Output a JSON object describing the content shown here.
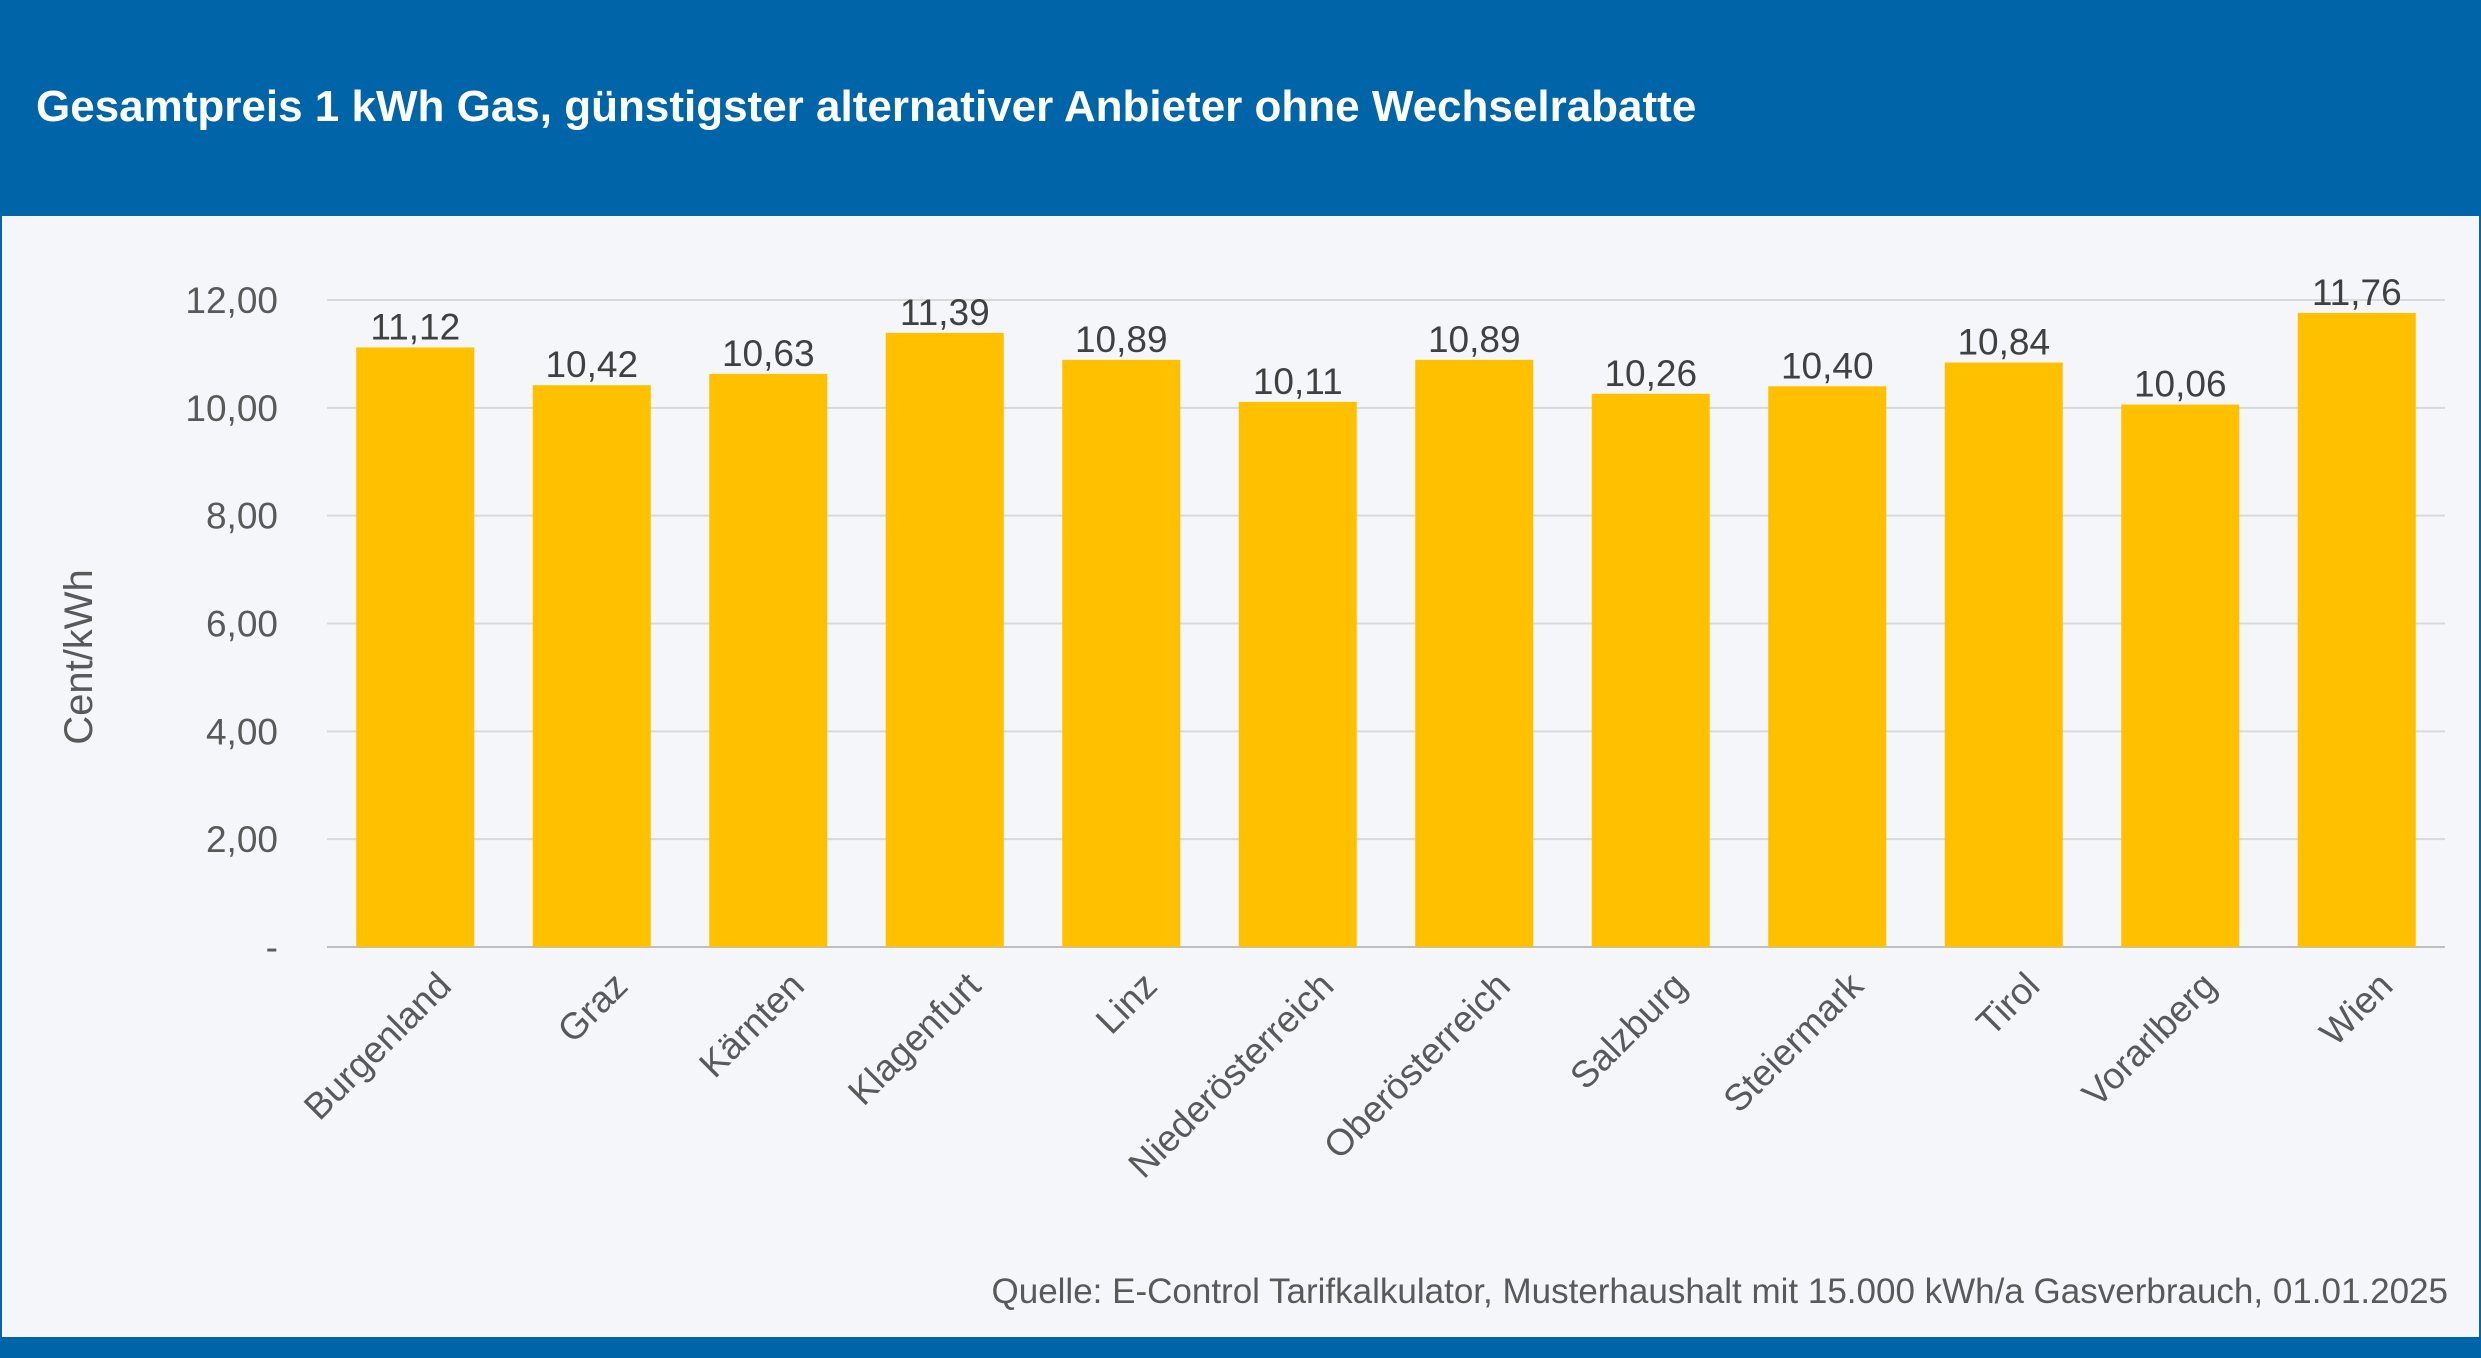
{
  "header": {
    "title": "Gesamtpreis 1 kWh Gas, günstigster alternativer Anbieter ohne Wechselrabatte"
  },
  "footer": {
    "source": "Quelle: E-Control Tarifkalkulator, Musterhaushalt mit 15.000 kWh/a Gasverbrauch, 01.01.2025"
  },
  "colors": {
    "header_blue": "#0064a8",
    "bar": "#ffc000",
    "background": "#f4f6fa",
    "gridline": "#d9d9d9"
  },
  "chart_data": {
    "type": "bar",
    "title": "Gesamtpreis 1 kWh Gas, günstigster alternativer Anbieter ohne Wechselrabatte",
    "ylabel": "Cent/kWh",
    "xlabel": "",
    "ylim": [
      0,
      12
    ],
    "yticks": [
      0,
      2,
      4,
      6,
      8,
      10,
      12
    ],
    "ytick_labels": [
      "-",
      "2,00",
      "4,00",
      "6,00",
      "8,00",
      "10,00",
      "12,00"
    ],
    "grid": true,
    "legend": "none",
    "categories": [
      "Burgenland",
      "Graz",
      "Kärnten",
      "Klagenfurt",
      "Linz",
      "Niederösterreich",
      "Oberösterreich",
      "Salzburg",
      "Steiermark",
      "Tirol",
      "Vorarlberg",
      "Wien"
    ],
    "values": [
      11.12,
      10.42,
      10.63,
      11.39,
      10.89,
      10.11,
      10.89,
      10.26,
      10.4,
      10.84,
      10.06,
      11.76
    ],
    "data_labels": [
      "11,12",
      "10,42",
      "10,63",
      "11,39",
      "10,89",
      "10,11",
      "10,89",
      "10,26",
      "10,40",
      "10,84",
      "10,06",
      "11,76"
    ]
  }
}
